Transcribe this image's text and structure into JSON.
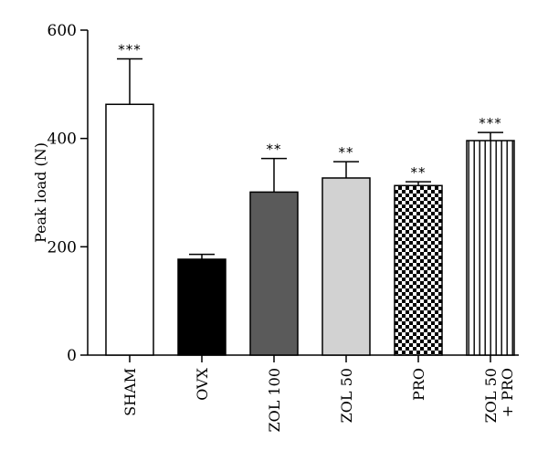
{
  "chart_data": {
    "type": "bar",
    "title": "",
    "xlabel": "",
    "ylabel": "Peak load (N)",
    "ylim": [
      0,
      600
    ],
    "yticks": [
      0,
      200,
      400,
      600
    ],
    "grid": false,
    "categories": [
      [
        "SHAM"
      ],
      [
        "OVX"
      ],
      [
        "ZOL 100"
      ],
      [
        "ZOL 50"
      ],
      [
        "PRO"
      ],
      [
        "ZOL 50",
        "+ PRO"
      ]
    ],
    "values": [
      463,
      177,
      301,
      327,
      313,
      396
    ],
    "error_upper": [
      547,
      186,
      363,
      357,
      320,
      411
    ],
    "significance": [
      "***",
      "",
      "**",
      "**",
      "**",
      "***"
    ],
    "bar_fills": [
      "white",
      "black",
      "dark-gray",
      "light-gray",
      "checkerboard",
      "vertical-stripes"
    ],
    "colors": {
      "dark_gray": "#5a5a5a",
      "light_gray": "#d2d2d2",
      "black": "#000000",
      "white": "#ffffff"
    }
  }
}
